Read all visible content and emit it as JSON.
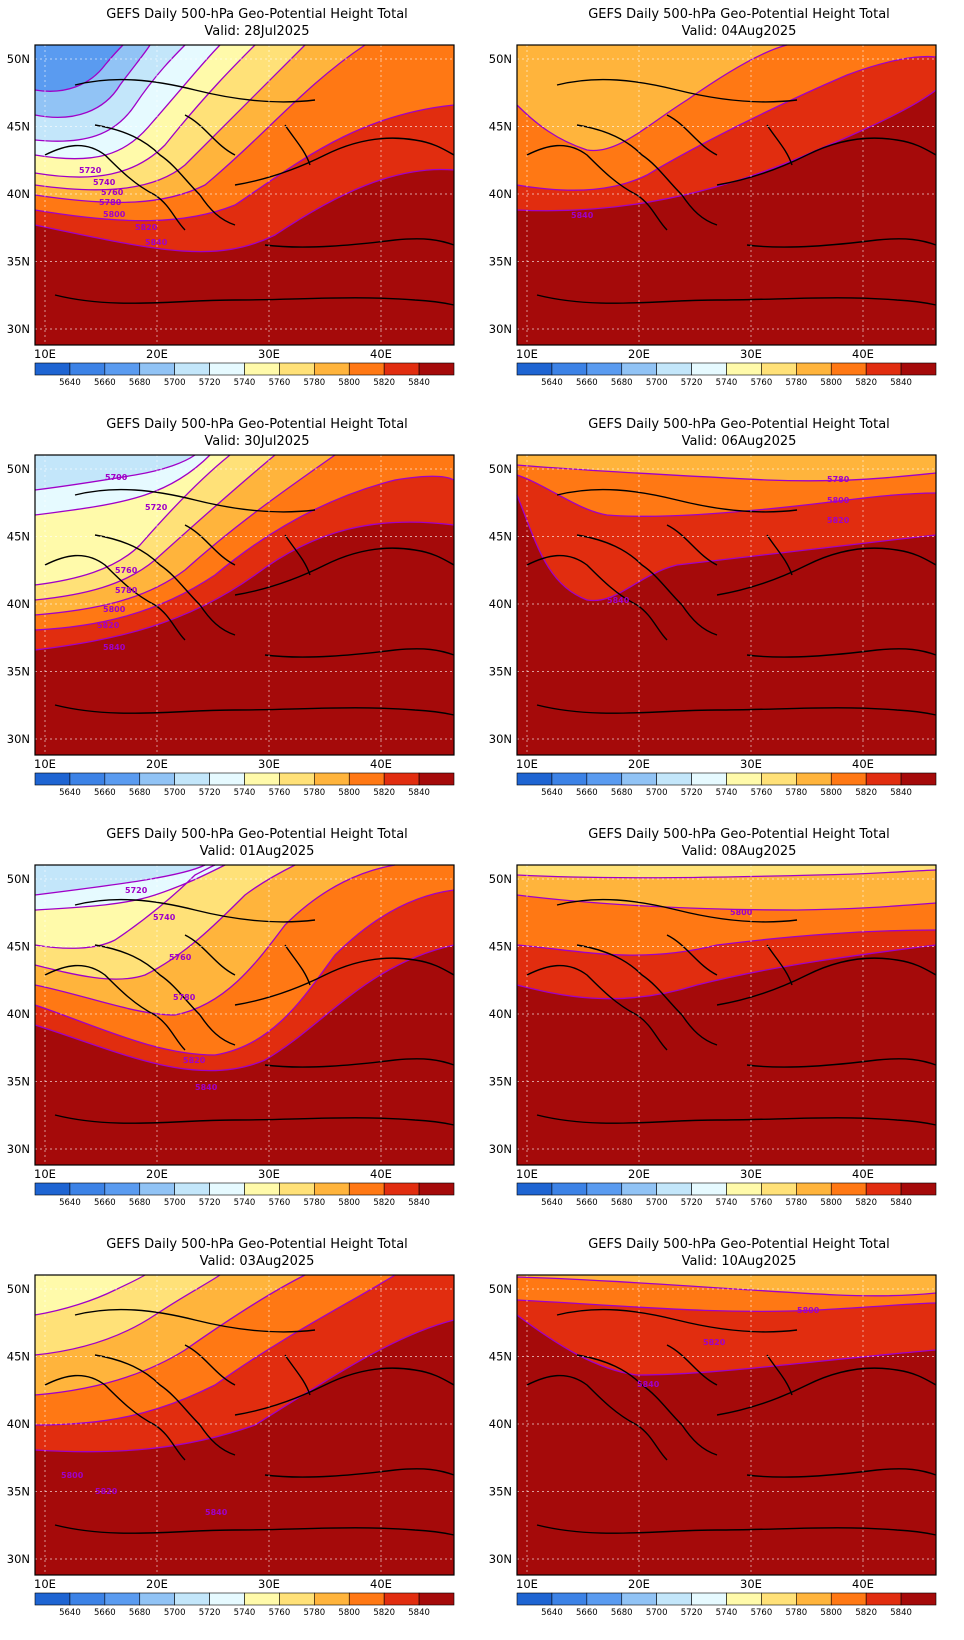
{
  "title": "GEFS Daily 500-hPa Geo-Potential Height Total",
  "lon_ticks": [
    "10E",
    "20E",
    "30E",
    "40E"
  ],
  "lat_ticks": [
    "50N",
    "45N",
    "40N",
    "35N",
    "30N"
  ],
  "colorbar": {
    "labels": [
      "5640",
      "5660",
      "5680",
      "5700",
      "5720",
      "5740",
      "5760",
      "5780",
      "5800",
      "5820",
      "5840"
    ],
    "colors": [
      "#1e64d2",
      "#3c82e6",
      "#5a9bf0",
      "#91c3f5",
      "#c3e6fa",
      "#e6faff",
      "#fffaaa",
      "#ffe178",
      "#ffb43c",
      "#ff7814",
      "#e12d0f",
      "#a50a0a"
    ]
  },
  "contour_color": "#a000c8",
  "panels": [
    {
      "id": "p1",
      "valid": "Valid: 28Jul2025",
      "labels": [
        "5720",
        "5740",
        "5760",
        "5780",
        "5800",
        "5820",
        "5840"
      ]
    },
    {
      "id": "p2",
      "valid": "Valid: 04Aug2025",
      "labels": [
        "5840"
      ]
    },
    {
      "id": "p3",
      "valid": "Valid: 30Jul2025",
      "labels": [
        "5700",
        "5720",
        "5760",
        "5780",
        "5800",
        "5820",
        "5840"
      ]
    },
    {
      "id": "p4",
      "valid": "Valid: 06Aug2025",
      "labels": [
        "5780",
        "5800",
        "5820",
        "5840"
      ]
    },
    {
      "id": "p5",
      "valid": "Valid: 01Aug2025",
      "labels": [
        "5720",
        "5740",
        "5760",
        "5780",
        "5820",
        "5840"
      ]
    },
    {
      "id": "p6",
      "valid": "Valid: 08Aug2025",
      "labels": [
        "5800"
      ]
    },
    {
      "id": "p7",
      "valid": "Valid: 03Aug2025",
      "labels": [
        "5800",
        "5820",
        "5840"
      ]
    },
    {
      "id": "p8",
      "valid": "Valid: 10Aug2025",
      "labels": [
        "5800",
        "5820",
        "5840"
      ]
    }
  ]
}
